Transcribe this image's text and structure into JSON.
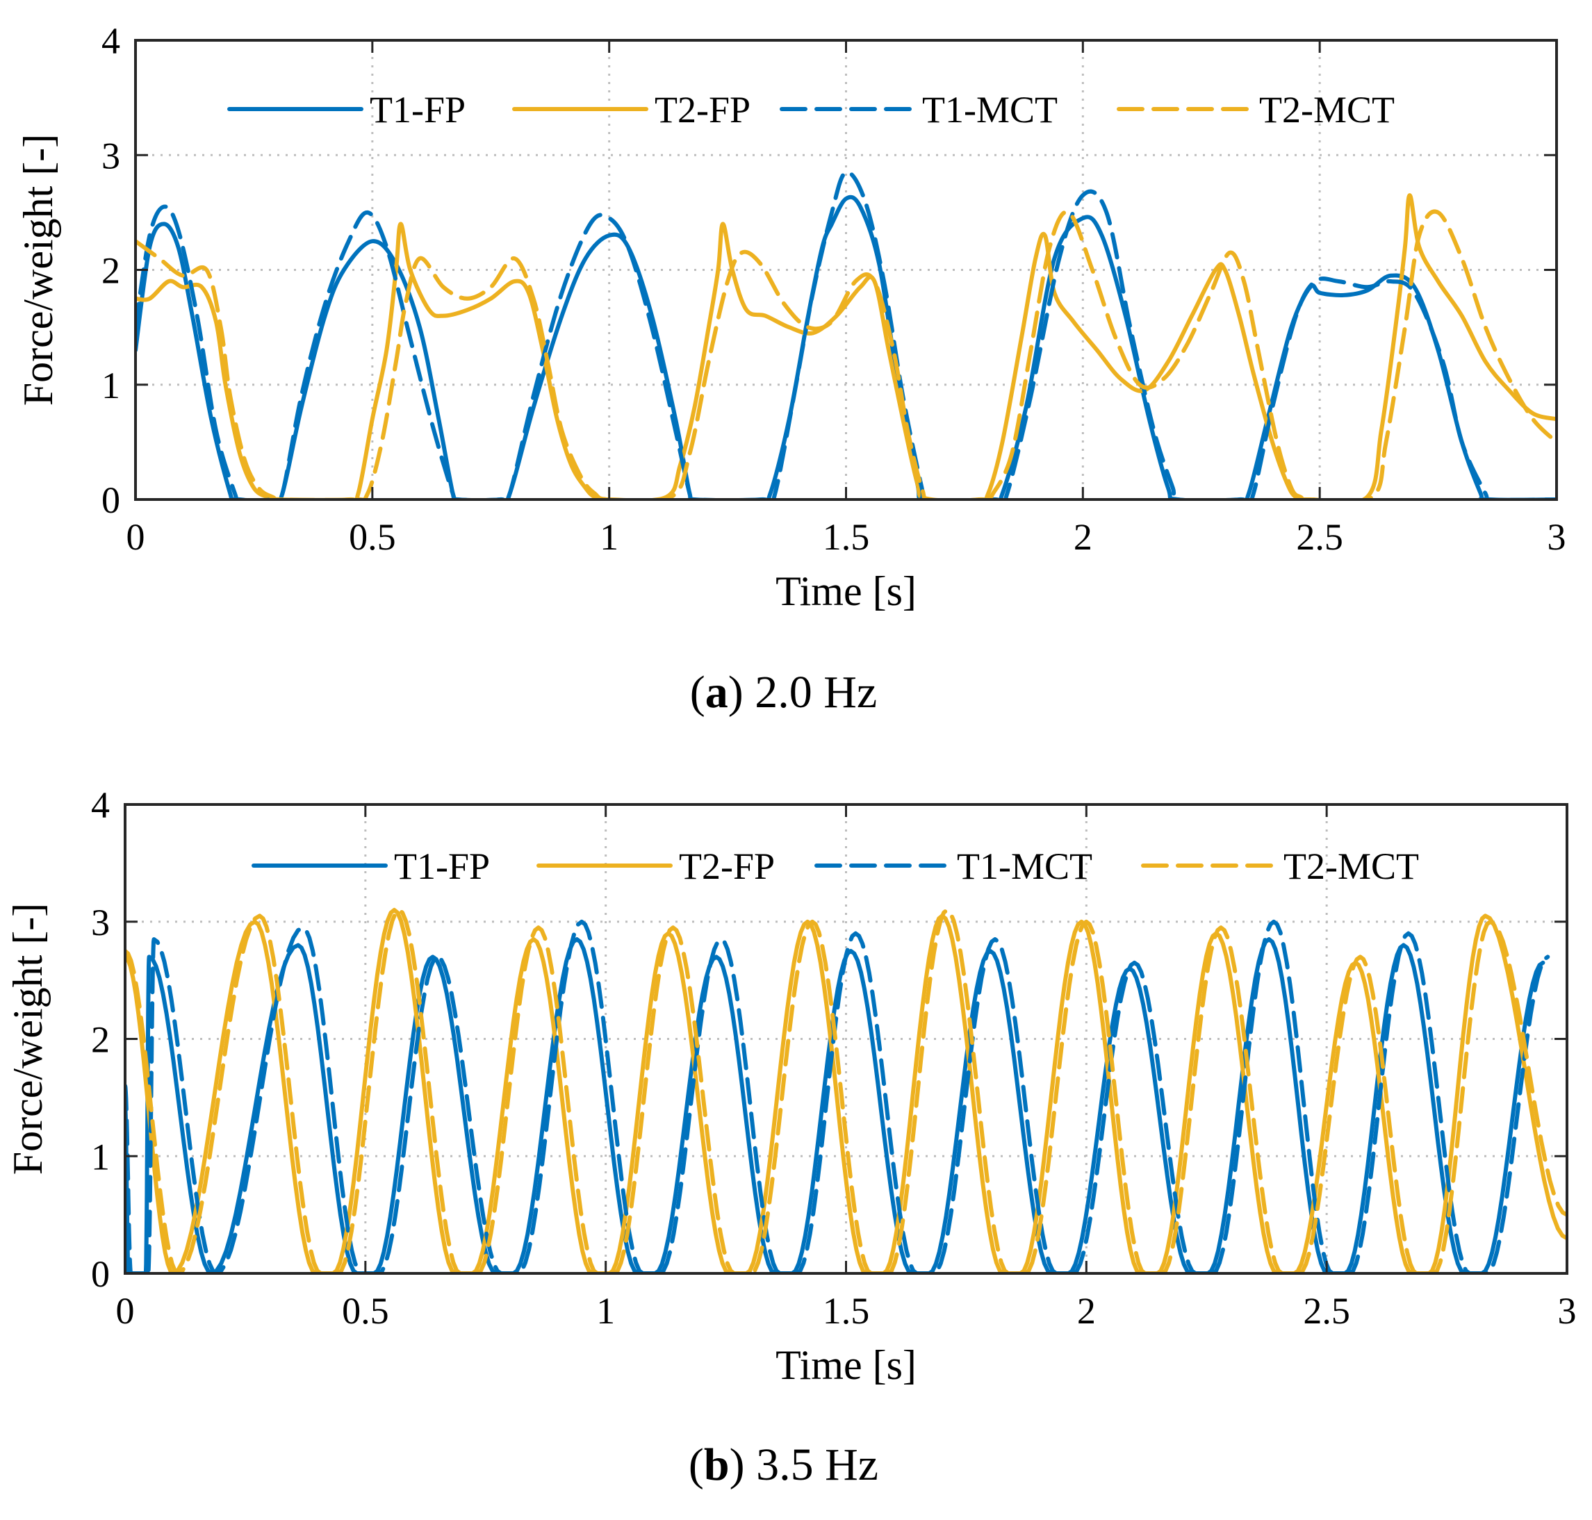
{
  "chart_data": [
    {
      "type": "line",
      "caption": {
        "letter": "a",
        "text": "2.0 Hz"
      },
      "xlabel": "Time [s]",
      "ylabel": "Force/weight [-]",
      "xlim": [
        0,
        3
      ],
      "ylim": [
        0,
        4
      ],
      "xticks": [
        0,
        0.5,
        1,
        1.5,
        2,
        2.5,
        3
      ],
      "xtick_labels": [
        "0",
        "0.5",
        "1",
        "1.5",
        "2",
        "2.5",
        "3"
      ],
      "yticks": [
        0,
        1,
        2,
        3,
        4
      ],
      "ytick_labels": [
        "0",
        "1",
        "2",
        "3",
        "4"
      ],
      "grid": true,
      "legend": {
        "placement": "top",
        "orientation": "horizontal"
      },
      "series": [
        {
          "name": "T1-FP",
          "color": "#0072BD",
          "style": "solid",
          "x": [
            0,
            0.03,
            0.06,
            0.09,
            0.12,
            0.16,
            0.2,
            0.21,
            0.29,
            0.31,
            0.35,
            0.4,
            0.44,
            0.5,
            0.55,
            0.6,
            0.64,
            0.67,
            0.68,
            0.77,
            0.79,
            0.84,
            0.9,
            0.95,
            1.0,
            1.04,
            1.09,
            1.14,
            1.17,
            1.18,
            1.32,
            1.34,
            1.38,
            1.42,
            1.45,
            1.47,
            1.5,
            1.53,
            1.57,
            1.61,
            1.65,
            1.67,
            1.81,
            1.83,
            1.88,
            1.94,
            2.0,
            2.04,
            2.09,
            2.14,
            2.18,
            2.2,
            2.33,
            2.35,
            2.39,
            2.44,
            2.48,
            2.5,
            2.55,
            2.6,
            2.65,
            2.7,
            2.75,
            2.8,
            2.84,
            2.85,
            3.0
          ],
          "y": [
            1.3,
            2.2,
            2.4,
            2.2,
            1.6,
            0.7,
            0.05,
            0,
            0,
            0.05,
            0.8,
            1.6,
            2.0,
            2.25,
            2.05,
            1.5,
            0.7,
            0.05,
            0,
            0,
            0.05,
            0.8,
            1.6,
            2.1,
            2.3,
            2.2,
            1.6,
            0.7,
            0.05,
            0,
            0,
            0.05,
            0.7,
            1.6,
            2.2,
            2.4,
            2.62,
            2.55,
            2.05,
            1.0,
            0.15,
            0,
            0,
            0.05,
            0.8,
            2.1,
            2.45,
            2.3,
            1.6,
            0.7,
            0.1,
            0,
            0,
            0.05,
            0.7,
            1.5,
            1.85,
            1.8,
            1.78,
            1.82,
            1.95,
            1.85,
            1.3,
            0.5,
            0.05,
            0,
            0
          ]
        },
        {
          "name": "T2-FP",
          "color": "#EDB120",
          "style": "solid",
          "x": [
            0,
            0.03,
            0.07,
            0.1,
            0.14,
            0.17,
            0.19,
            0.22,
            0.25,
            0.28,
            0.3,
            0.45,
            0.47,
            0.5,
            0.53,
            0.55,
            0.56,
            0.58,
            0.62,
            0.65,
            0.7,
            0.75,
            0.8,
            0.83,
            0.86,
            0.89,
            0.92,
            0.95,
            0.97,
            1.0,
            1.12,
            1.15,
            1.18,
            1.21,
            1.23,
            1.24,
            1.26,
            1.29,
            1.33,
            1.38,
            1.43,
            1.48,
            1.53,
            1.56,
            1.59,
            1.62,
            1.65,
            1.67,
            1.78,
            1.8,
            1.83,
            1.87,
            1.9,
            1.92,
            1.94,
            1.98,
            2.03,
            2.08,
            2.13,
            2.18,
            2.23,
            2.28,
            2.3,
            2.33,
            2.36,
            2.4,
            2.43,
            2.45,
            2.48,
            2.6,
            2.63,
            2.66,
            2.68,
            2.69,
            2.71,
            2.75,
            2.8,
            2.85,
            2.9,
            2.95,
            3.0
          ],
          "y": [
            1.75,
            1.75,
            1.9,
            1.85,
            1.85,
            1.55,
            1.0,
            0.4,
            0.1,
            0.02,
            0,
            0,
            0.05,
            0.7,
            1.3,
            2.0,
            2.4,
            2.0,
            1.65,
            1.6,
            1.65,
            1.75,
            1.9,
            1.8,
            1.3,
            0.7,
            0.3,
            0.1,
            0.02,
            0,
            0.02,
            0.3,
            0.8,
            1.5,
            2.0,
            2.4,
            2.0,
            1.65,
            1.6,
            1.5,
            1.45,
            1.6,
            1.85,
            1.9,
            1.3,
            0.7,
            0.15,
            0,
            0,
            0.05,
            0.5,
            1.4,
            2.1,
            2.3,
            1.8,
            1.55,
            1.3,
            1.05,
            0.95,
            1.2,
            1.6,
            2.0,
            2.0,
            1.6,
            1.1,
            0.5,
            0.15,
            0.02,
            0,
            0.02,
            0.6,
            1.5,
            2.2,
            2.65,
            2.2,
            1.9,
            1.6,
            1.2,
            0.95,
            0.75,
            0.7
          ]
        },
        {
          "name": "T1-MCT",
          "color": "#0072BD",
          "style": "dashed",
          "x": [
            0,
            0.03,
            0.06,
            0.09,
            0.13,
            0.17,
            0.21,
            0.22,
            0.29,
            0.31,
            0.35,
            0.4,
            0.45,
            0.49,
            0.53,
            0.58,
            0.63,
            0.67,
            0.68,
            0.77,
            0.79,
            0.84,
            0.9,
            0.96,
            1.0,
            1.04,
            1.09,
            1.14,
            1.17,
            1.18,
            1.33,
            1.35,
            1.39,
            1.43,
            1.47,
            1.5,
            1.54,
            1.58,
            1.62,
            1.66,
            1.67,
            1.82,
            1.84,
            1.89,
            1.95,
            2.0,
            2.05,
            2.1,
            2.15,
            2.19,
            2.2,
            2.34,
            2.36,
            2.4,
            2.45,
            2.49,
            2.54,
            2.6,
            2.65,
            2.7,
            2.76,
            2.8,
            2.85,
            2.86,
            3.0
          ],
          "y": [
            1.5,
            2.3,
            2.55,
            2.35,
            1.6,
            0.6,
            0.05,
            0,
            0,
            0.05,
            0.9,
            1.7,
            2.25,
            2.5,
            2.2,
            1.4,
            0.6,
            0.05,
            0,
            0,
            0.05,
            0.9,
            1.8,
            2.4,
            2.45,
            2.2,
            1.5,
            0.6,
            0.05,
            0,
            0,
            0.05,
            0.9,
            1.8,
            2.5,
            2.85,
            2.6,
            1.9,
            0.9,
            0.1,
            0,
            0,
            0.05,
            0.9,
            2.1,
            2.65,
            2.5,
            1.5,
            0.6,
            0.1,
            0,
            0,
            0.05,
            0.8,
            1.6,
            1.9,
            1.9,
            1.85,
            1.9,
            1.8,
            1.2,
            0.5,
            0.05,
            0,
            0
          ]
        },
        {
          "name": "T2-MCT",
          "color": "#EDB120",
          "style": "dashed",
          "x": [
            0,
            0.05,
            0.1,
            0.15,
            0.18,
            0.2,
            0.23,
            0.26,
            0.29,
            0.31,
            0.46,
            0.49,
            0.52,
            0.55,
            0.57,
            0.6,
            0.65,
            0.7,
            0.75,
            0.8,
            0.84,
            0.87,
            0.9,
            0.94,
            0.97,
            1.0,
            1.13,
            1.17,
            1.21,
            1.25,
            1.28,
            1.32,
            1.37,
            1.42,
            1.47,
            1.52,
            1.56,
            1.6,
            1.63,
            1.66,
            1.68,
            1.79,
            1.81,
            1.85,
            1.89,
            1.93,
            1.97,
            2.02,
            2.07,
            2.12,
            2.17,
            2.22,
            2.27,
            2.31,
            2.34,
            2.37,
            2.41,
            2.44,
            2.46,
            2.48,
            2.61,
            2.64,
            2.68,
            2.71,
            2.75,
            2.8,
            2.85,
            2.9,
            2.95,
            3.0
          ],
          "y": [
            2.25,
            2.1,
            1.95,
            2.0,
            1.5,
            0.9,
            0.35,
            0.1,
            0.02,
            0,
            0,
            0.05,
            0.5,
            1.2,
            1.7,
            2.1,
            1.85,
            1.75,
            1.85,
            2.1,
            1.75,
            1.2,
            0.6,
            0.2,
            0.05,
            0,
            0.02,
            0.4,
            1.2,
            1.9,
            2.15,
            2.05,
            1.7,
            1.5,
            1.55,
            1.9,
            1.9,
            1.3,
            0.6,
            0.1,
            0,
            0,
            0.05,
            0.4,
            1.3,
            2.2,
            2.5,
            2.0,
            1.4,
            1.0,
            1.05,
            1.35,
            1.8,
            2.15,
            1.9,
            1.3,
            0.5,
            0.1,
            0.02,
            0,
            0.02,
            0.5,
            1.5,
            2.3,
            2.5,
            2.1,
            1.5,
            1.05,
            0.7,
            0.5
          ]
        }
      ]
    },
    {
      "type": "line",
      "caption": {
        "letter": "b",
        "text": "3.5 Hz"
      },
      "xlabel": "Time [s]",
      "ylabel": "Force/weight [-]",
      "xlim": [
        0,
        3
      ],
      "ylim": [
        0,
        4
      ],
      "xticks": [
        0,
        0.5,
        1,
        1.5,
        2,
        2.5,
        3
      ],
      "xtick_labels": [
        "0",
        "0.5",
        "1",
        "1.5",
        "2",
        "2.5",
        "3"
      ],
      "yticks": [
        0,
        1,
        2,
        3,
        4
      ],
      "ytick_labels": [
        "0",
        "1",
        "2",
        "3",
        "4"
      ],
      "grid": true,
      "legend": {
        "placement": "top",
        "orientation": "horizontal"
      },
      "series": [
        {
          "name": "T1-FP",
          "color": "#0072BD",
          "style": "solid",
          "x": [
            0,
            0.05,
            0.18,
            0.36,
            0.64,
            0.94,
            1.23,
            1.51,
            1.8,
            2.09,
            2.38,
            2.66,
            2.95
          ],
          "y": [
            1.45,
            2.7,
            0,
            2.8,
            2.7,
            2.85,
            2.7,
            2.75,
            2.75,
            2.6,
            2.85,
            2.8,
            2.65
          ]
        },
        {
          "name": "T2-FP",
          "color": "#EDB120",
          "style": "solid",
          "x": [
            0,
            0.1,
            0.27,
            0.56,
            0.85,
            1.13,
            1.42,
            1.7,
            1.99,
            2.27,
            2.56,
            2.83,
            3.0
          ],
          "y": [
            2.7,
            0,
            3.0,
            3.1,
            2.85,
            2.9,
            3.0,
            3.05,
            3.0,
            2.9,
            2.65,
            3.05,
            0.3
          ]
        },
        {
          "name": "T1-MCT",
          "color": "#0072BD",
          "style": "dashed",
          "x": [
            0,
            0.06,
            0.19,
            0.37,
            0.65,
            0.95,
            1.24,
            1.52,
            1.81,
            2.1,
            2.39,
            2.67,
            2.96
          ],
          "y": [
            1.6,
            2.85,
            0,
            2.95,
            2.7,
            3.0,
            2.85,
            2.9,
            2.85,
            2.65,
            3.0,
            2.9,
            2.7
          ]
        },
        {
          "name": "T2-MCT",
          "color": "#EDB120",
          "style": "dashed",
          "x": [
            0,
            0.11,
            0.28,
            0.57,
            0.86,
            1.14,
            1.43,
            1.71,
            2.0,
            2.28,
            2.57,
            2.84,
            3.0
          ],
          "y": [
            2.75,
            0,
            3.05,
            3.1,
            2.95,
            2.95,
            3.0,
            3.1,
            3.0,
            2.95,
            2.7,
            3.0,
            0.5
          ]
        }
      ]
    }
  ]
}
